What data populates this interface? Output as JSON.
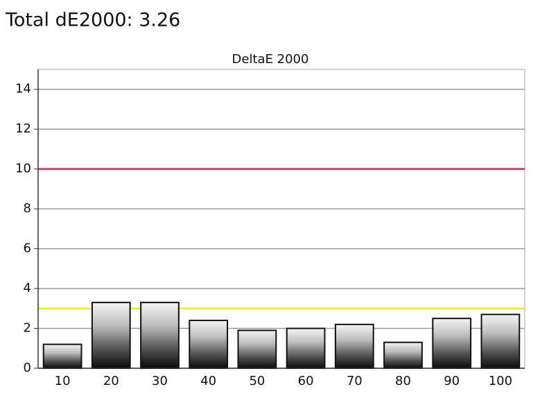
{
  "header": {
    "title": "Total dE2000: 3.26"
  },
  "chart_data": {
    "type": "bar",
    "title": "DeltaE 2000",
    "categories": [
      "10",
      "20",
      "30",
      "40",
      "50",
      "60",
      "70",
      "80",
      "90",
      "100"
    ],
    "values": [
      1.2,
      3.3,
      3.3,
      2.4,
      1.9,
      2.0,
      2.2,
      1.3,
      2.5,
      2.7
    ],
    "ylim": [
      0,
      15
    ],
    "yticks": [
      0,
      2,
      4,
      6,
      8,
      10,
      12,
      14
    ],
    "grid": true,
    "reference_lines": [
      {
        "value": 10,
        "color": "#d9275a"
      },
      {
        "value": 3,
        "color": "#f2f200"
      }
    ]
  }
}
